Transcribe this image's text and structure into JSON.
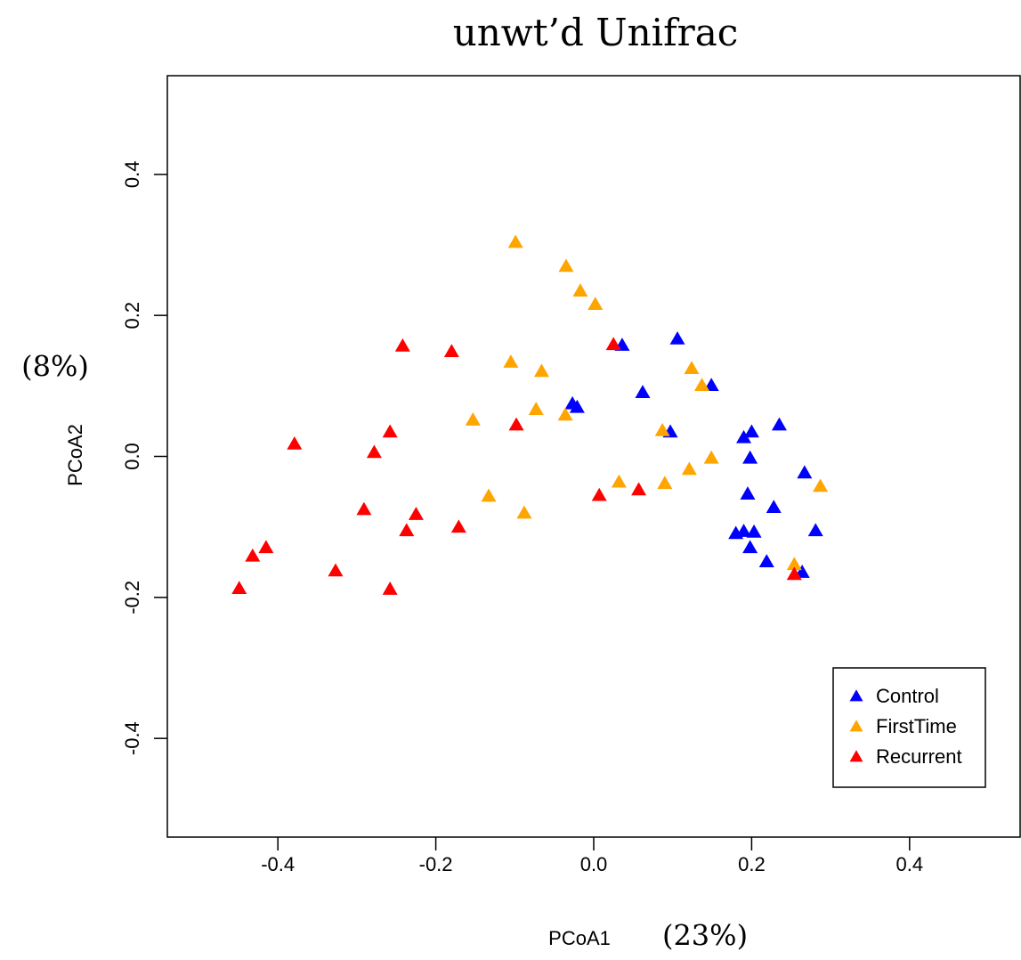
{
  "chart_data": {
    "type": "scatter",
    "title": "unwt’d Unifrac",
    "xlabel": "PCoA1",
    "ylabel": "PCoA2",
    "annotations": [
      "(8%)",
      "(23%)"
    ],
    "xlim": [
      -0.54,
      0.54
    ],
    "ylim": [
      -0.54,
      0.54
    ],
    "xticks": [
      -0.4,
      -0.2,
      {
        "value": 0,
        "label": "0.0"
      },
      0.2,
      0.4
    ],
    "yticks": [
      -0.4,
      -0.2,
      {
        "value": 0,
        "label": "0.0"
      },
      0.2,
      0.4
    ],
    "legend": "bottom-right",
    "series": [
      {
        "name": "Control",
        "color": "#0000ff",
        "x": [
          0.036,
          0.106,
          -0.027,
          -0.021,
          0.062,
          0.149,
          0.097,
          0.19,
          0.2,
          0.235,
          0.198,
          0.267,
          0.195,
          0.228,
          0.18,
          0.19,
          0.203,
          0.281,
          0.198,
          0.219,
          0.264
        ],
        "values": [
          0.156,
          0.165,
          0.073,
          0.068,
          0.089,
          0.099,
          0.033,
          0.025,
          0.033,
          0.043,
          -0.004,
          -0.025,
          -0.055,
          -0.074,
          -0.111,
          -0.108,
          -0.109,
          -0.107,
          -0.131,
          -0.151,
          -0.166
        ]
      },
      {
        "name": "FirstTime",
        "color": "#ffa500",
        "x": [
          -0.099,
          -0.035,
          -0.017,
          0.002,
          -0.105,
          -0.066,
          0.124,
          0.137,
          -0.153,
          -0.073,
          -0.036,
          0.087,
          0.149,
          0.121,
          0.032,
          0.09,
          0.287,
          -0.133,
          -0.088,
          0.254
        ],
        "values": [
          0.302,
          0.268,
          0.233,
          0.214,
          0.132,
          0.119,
          0.123,
          0.099,
          0.05,
          0.065,
          0.057,
          0.035,
          -0.004,
          -0.02,
          -0.038,
          -0.04,
          -0.044,
          -0.058,
          -0.082,
          -0.155
        ]
      },
      {
        "name": "Recurrent",
        "color": "#ff0000",
        "x": [
          -0.242,
          -0.18,
          0.025,
          -0.098,
          -0.379,
          -0.258,
          -0.278,
          0.007,
          0.057,
          -0.291,
          -0.225,
          -0.237,
          -0.171,
          -0.415,
          -0.432,
          -0.327,
          -0.449,
          -0.258,
          0.254
        ],
        "values": [
          0.155,
          0.147,
          0.157,
          0.043,
          0.016,
          0.033,
          0.004,
          -0.057,
          -0.049,
          -0.077,
          -0.084,
          -0.107,
          -0.102,
          -0.131,
          -0.143,
          -0.164,
          -0.189,
          -0.19,
          -0.169
        ]
      }
    ]
  }
}
